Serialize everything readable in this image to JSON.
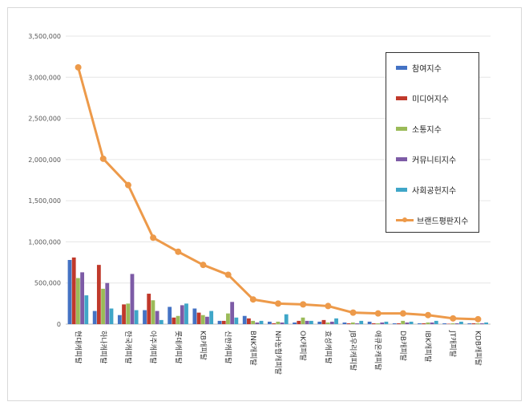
{
  "chart_data": {
    "type": "bar",
    "categories": [
      "현대캐피탈",
      "하나캐피탈",
      "한국캐피탈",
      "아주캐피탈",
      "롯데캐피탈",
      "KB캐피탈",
      "신한캐피탈",
      "BNK캐피탈",
      "NH농협캐피탈",
      "OK캐피탈",
      "효성캐피탈",
      "JB우리캐피탈",
      "애큐온캐피탈",
      "DB캐피탈",
      "IBK캐피탈",
      "JT캐피탈",
      "KDB캐피탈"
    ],
    "ylim": [
      0,
      3500000
    ],
    "yticks": [
      0,
      500000,
      1000000,
      1500000,
      2000000,
      2500000,
      3000000,
      3500000
    ],
    "ytick_labels": [
      "0",
      "500,000",
      "1,000,000",
      "1,500,000",
      "2,000,000",
      "2,500,000",
      "3,000,000",
      "3,500,000"
    ],
    "series": [
      {
        "name": "참여지수",
        "kind": "bar",
        "color": "#4472c4",
        "values": [
          780000,
          160000,
          110000,
          170000,
          210000,
          190000,
          40000,
          100000,
          30000,
          20000,
          30000,
          20000,
          30000,
          10000,
          10000,
          10000,
          10000
        ]
      },
      {
        "name": "미디어지수",
        "kind": "bar",
        "color": "#c0392b",
        "values": [
          810000,
          720000,
          240000,
          370000,
          80000,
          140000,
          40000,
          70000,
          10000,
          40000,
          50000,
          10000,
          10000,
          10000,
          10000,
          5000,
          10000
        ]
      },
      {
        "name": "소통지수",
        "kind": "bar",
        "color": "#9bbb59",
        "values": [
          560000,
          430000,
          250000,
          290000,
          100000,
          110000,
          130000,
          40000,
          30000,
          80000,
          20000,
          20000,
          10000,
          40000,
          20000,
          10000,
          10000
        ]
      },
      {
        "name": "커뮤니티지수",
        "kind": "bar",
        "color": "#7d5ba6",
        "values": [
          630000,
          500000,
          610000,
          160000,
          230000,
          90000,
          270000,
          20000,
          20000,
          40000,
          30000,
          10000,
          20000,
          20000,
          20000,
          10000,
          10000
        ]
      },
      {
        "name": "사회공헌지수",
        "kind": "bar",
        "color": "#3fa6c8",
        "values": [
          350000,
          190000,
          170000,
          50000,
          250000,
          160000,
          80000,
          40000,
          120000,
          40000,
          70000,
          40000,
          30000,
          30000,
          40000,
          30000,
          20000
        ]
      },
      {
        "name": "브랜드평판지수",
        "kind": "line",
        "color": "#ed9a4a",
        "values": [
          3120000,
          2010000,
          1690000,
          1050000,
          880000,
          720000,
          600000,
          300000,
          250000,
          240000,
          220000,
          140000,
          130000,
          130000,
          110000,
          70000,
          60000
        ]
      }
    ]
  }
}
